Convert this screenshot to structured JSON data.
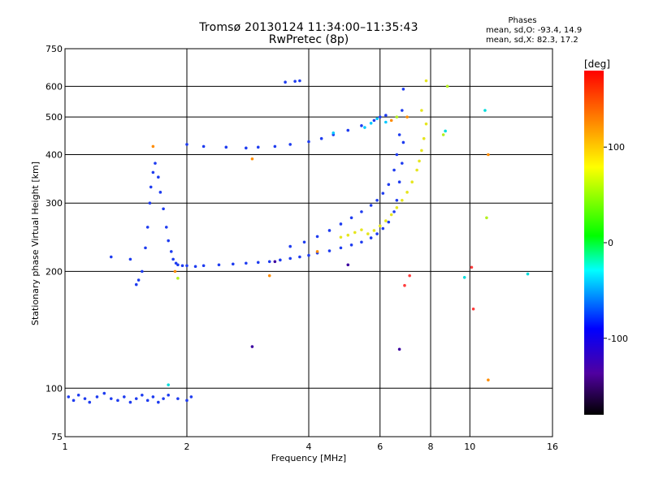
{
  "header": {
    "title": "Tromsø 20130124 11:34:00–11:35:43",
    "subtitle": "RwPretec (8p)",
    "phase_title": "Phases",
    "phase_o": "mean, sd,O: -93.4, 14.9",
    "phase_x": "mean, sd,X: 82.3, 17.2"
  },
  "chart_data": {
    "type": "scatter",
    "xlabel": "Frequency [MHz]",
    "ylabel": "Stationary phase Virtual Height [km]",
    "x_scale": "log",
    "y_scale": "log",
    "xlim": [
      1,
      16
    ],
    "ylim": [
      75,
      750
    ],
    "x_ticks": [
      1,
      2,
      4,
      6,
      8,
      10,
      16
    ],
    "x_gridlines": [
      2,
      4,
      6,
      8,
      10
    ],
    "y_ticks": [
      75,
      100,
      200,
      300,
      400,
      500,
      600,
      750
    ],
    "y_gridlines": [
      100,
      200,
      300,
      400,
      500,
      600
    ],
    "grid": true,
    "colorbar": {
      "label": "[deg]",
      "range": [
        -180,
        180
      ],
      "ticks": [
        -100,
        0,
        100
      ],
      "colormap": "rainbow (black-purple-blue-cyan-green-yellow-red)"
    },
    "series": [
      {
        "color": "#1e3cf0",
        "points": [
          [
            1.02,
            95
          ],
          [
            1.05,
            93
          ],
          [
            1.08,
            96
          ],
          [
            1.12,
            94
          ],
          [
            1.15,
            92
          ],
          [
            1.2,
            95
          ],
          [
            1.25,
            97
          ],
          [
            1.3,
            94
          ],
          [
            1.35,
            93
          ],
          [
            1.4,
            95
          ],
          [
            1.45,
            92
          ],
          [
            1.5,
            94
          ],
          [
            1.55,
            96
          ],
          [
            1.6,
            93
          ],
          [
            1.65,
            95
          ],
          [
            1.7,
            92
          ],
          [
            1.75,
            94
          ],
          [
            1.8,
            96
          ],
          [
            1.9,
            94
          ],
          [
            2.0,
            93
          ],
          [
            2.05,
            95
          ]
        ]
      },
      {
        "color": "#1e3cf0",
        "points": [
          [
            1.3,
            218
          ],
          [
            1.45,
            215
          ],
          [
            1.5,
            185
          ],
          [
            1.52,
            190
          ],
          [
            1.55,
            200
          ],
          [
            1.58,
            230
          ],
          [
            1.6,
            260
          ],
          [
            1.62,
            300
          ],
          [
            1.63,
            330
          ],
          [
            1.65,
            360
          ],
          [
            1.67,
            380
          ],
          [
            1.7,
            350
          ],
          [
            1.72,
            320
          ],
          [
            1.75,
            290
          ],
          [
            1.78,
            260
          ],
          [
            1.8,
            240
          ],
          [
            1.83,
            225
          ],
          [
            1.85,
            215
          ],
          [
            1.88,
            210
          ],
          [
            1.9,
            208
          ],
          [
            1.95,
            207
          ],
          [
            2.0,
            207
          ],
          [
            2.1,
            206
          ],
          [
            2.2,
            207
          ],
          [
            2.4,
            208
          ],
          [
            2.6,
            209
          ],
          [
            2.8,
            210
          ],
          [
            3.0,
            211
          ],
          [
            3.2,
            212
          ],
          [
            3.4,
            214
          ],
          [
            3.6,
            216
          ],
          [
            3.8,
            218
          ],
          [
            4.0,
            220
          ],
          [
            4.2,
            223
          ],
          [
            4.5,
            226
          ],
          [
            4.8,
            230
          ],
          [
            5.1,
            234
          ],
          [
            5.4,
            238
          ],
          [
            5.7,
            244
          ],
          [
            5.9,
            250
          ],
          [
            6.1,
            258
          ],
          [
            6.3,
            268
          ],
          [
            6.5,
            285
          ],
          [
            6.6,
            305
          ],
          [
            6.7,
            340
          ],
          [
            6.8,
            380
          ],
          [
            6.85,
            430
          ]
        ]
      },
      {
        "color": "#1e3cf0",
        "points": [
          [
            2.0,
            425
          ],
          [
            2.2,
            420
          ],
          [
            2.5,
            418
          ],
          [
            2.8,
            416
          ],
          [
            3.0,
            418
          ],
          [
            3.3,
            420
          ],
          [
            3.6,
            425
          ],
          [
            4.0,
            432
          ],
          [
            4.3,
            440
          ],
          [
            4.6,
            450
          ],
          [
            5.0,
            462
          ],
          [
            5.4,
            475
          ],
          [
            5.8,
            490
          ],
          [
            6.0,
            500
          ],
          [
            6.2,
            505
          ],
          [
            3.5,
            615
          ],
          [
            3.7,
            618
          ],
          [
            3.8,
            620
          ]
        ]
      },
      {
        "color": "#1e3cf0",
        "points": [
          [
            3.6,
            232
          ],
          [
            3.9,
            238
          ],
          [
            4.2,
            246
          ],
          [
            4.5,
            255
          ],
          [
            4.8,
            265
          ],
          [
            5.1,
            275
          ],
          [
            5.4,
            285
          ],
          [
            5.7,
            296
          ],
          [
            5.9,
            305
          ],
          [
            6.1,
            318
          ],
          [
            6.3,
            335
          ],
          [
            6.5,
            365
          ],
          [
            6.6,
            400
          ],
          [
            6.7,
            450
          ],
          [
            6.8,
            520
          ],
          [
            6.85,
            590
          ]
        ]
      },
      {
        "color": "#e6e61e",
        "points": [
          [
            4.8,
            245
          ],
          [
            5.0,
            248
          ],
          [
            5.2,
            252
          ],
          [
            5.4,
            256
          ],
          [
            5.6,
            250
          ],
          [
            5.8,
            255
          ],
          [
            6.0,
            262
          ],
          [
            6.2,
            270
          ],
          [
            6.4,
            280
          ],
          [
            6.6,
            292
          ],
          [
            6.8,
            305
          ],
          [
            7.0,
            320
          ],
          [
            7.2,
            340
          ],
          [
            7.4,
            365
          ],
          [
            7.5,
            385
          ],
          [
            7.6,
            410
          ],
          [
            7.7,
            440
          ],
          [
            7.8,
            480
          ],
          [
            7.6,
            520
          ],
          [
            7.8,
            620
          ]
        ]
      },
      {
        "color": "#00c8ff",
        "points": [
          [
            5.5,
            470
          ],
          [
            5.7,
            482
          ],
          [
            5.9,
            495
          ],
          [
            6.2,
            485
          ],
          [
            4.6,
            455
          ]
        ]
      },
      {
        "color": "#ff8c00",
        "points": [
          [
            1.65,
            420
          ],
          [
            1.87,
            200
          ],
          [
            2.9,
            390
          ],
          [
            3.2,
            195
          ],
          [
            4.2,
            225
          ],
          [
            6.4,
            490
          ],
          [
            7.0,
            500
          ],
          [
            11.1,
            400
          ],
          [
            11.1,
            105
          ]
        ]
      },
      {
        "color": "#b4f01e",
        "points": [
          [
            1.9,
            192
          ],
          [
            6.6,
            500
          ],
          [
            8.6,
            450
          ],
          [
            11.0,
            275
          ],
          [
            8.8,
            600
          ]
        ]
      },
      {
        "color": "#ff3c3c",
        "points": [
          [
            10.1,
            205
          ],
          [
            10.2,
            160
          ],
          [
            6.9,
            184
          ],
          [
            7.1,
            195
          ]
        ]
      },
      {
        "color": "#3c00a0",
        "points": [
          [
            2.9,
            128
          ],
          [
            3.3,
            212
          ],
          [
            6.7,
            126
          ],
          [
            5.0,
            208
          ]
        ]
      },
      {
        "color": "#00dcdc",
        "points": [
          [
            1.8,
            102
          ],
          [
            8.7,
            460
          ],
          [
            10.9,
            520
          ],
          [
            13.9,
            197
          ],
          [
            9.7,
            193
          ]
        ]
      }
    ]
  }
}
